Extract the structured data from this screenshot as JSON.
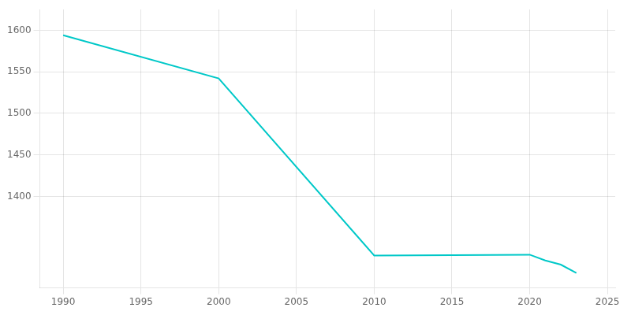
{
  "chart_data": {
    "type": "line",
    "x": [
      1990,
      2000,
      2010,
      2020,
      2021,
      2022,
      2023
    ],
    "values": [
      1594,
      1542,
      1329,
      1330,
      1323,
      1318,
      1308
    ],
    "color": "#00c8c8",
    "xlim": [
      1988.5,
      2025.5
    ],
    "ylim": [
      1290,
      1625
    ],
    "xticks": [
      1990,
      1995,
      2000,
      2005,
      2010,
      2015,
      2020,
      2025
    ],
    "yticks": [
      1400,
      1450,
      1500,
      1550,
      1600
    ],
    "grid": true
  }
}
